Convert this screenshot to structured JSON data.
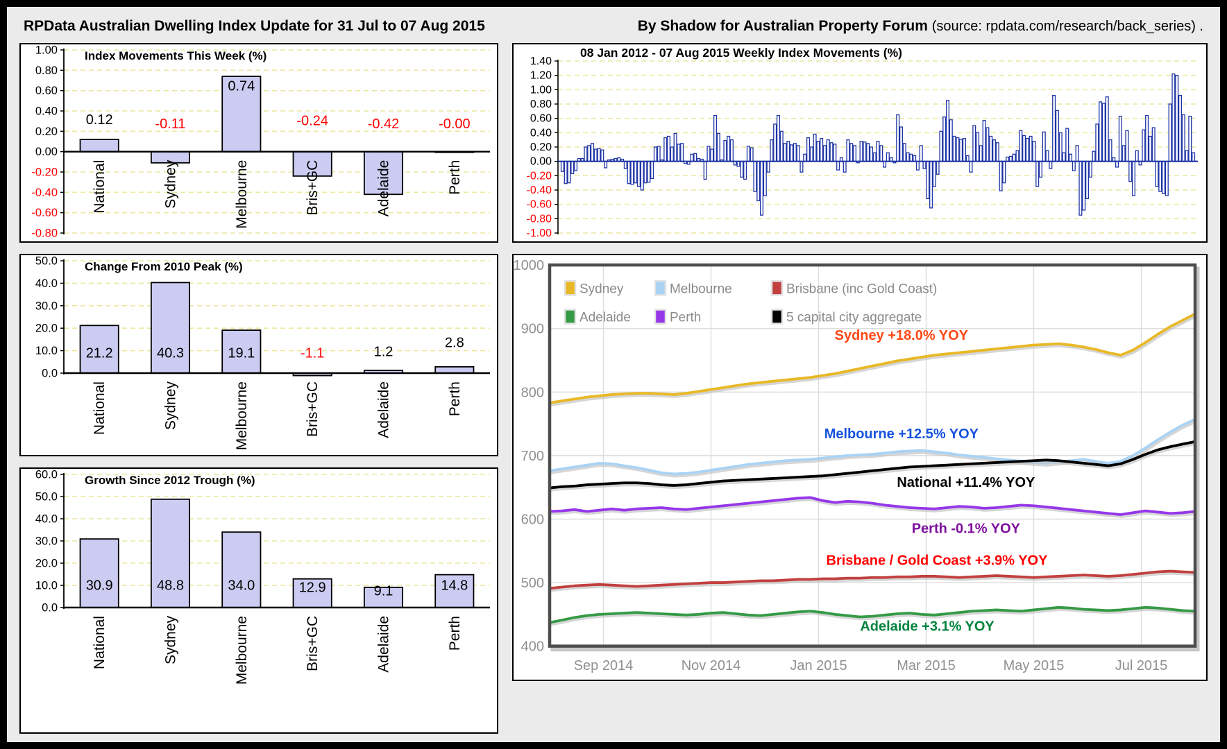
{
  "header": {
    "left_title": "RPData Australian Dwelling Index Update for 31 Jul to 07 Aug 2015",
    "right_title_bold": "By Shadow for Australian Property Forum",
    "right_title_rest": "(source: rpdata.com/research/back_series) ."
  },
  "colors": {
    "bar_fill": "#ccccf2",
    "bar_stroke": "#000000",
    "grid_yellow": "#ece79e",
    "weekly_bar_stroke": "#1f35a5",
    "negative_red": "#ff0000",
    "axis_gray": "#909090",
    "frame_gray": "#4d4d4d",
    "line_grid_gray": "#dcdcdc",
    "legend_text_gray": "#8a8a8a"
  },
  "chart_data": [
    {
      "id": "this_week",
      "type": "bar",
      "title": "Index Movements This Week (%)",
      "categories": [
        "National",
        "Sydney",
        "Melbourne",
        "Bris+GC",
        "Adelaide",
        "Perth"
      ],
      "values": [
        0.12,
        -0.11,
        0.74,
        -0.24,
        -0.42,
        -0.005
      ],
      "value_labels": [
        "0.12",
        "-0.11",
        "0.74",
        "-0.24",
        "-0.42",
        "-0.00"
      ],
      "label_heights": [
        0.27,
        0.23,
        0.6,
        0.26,
        0.23,
        0.23
      ],
      "ylim": [
        -0.8,
        1.0
      ],
      "ytick": 0.2,
      "ydecimals": 2
    },
    {
      "id": "weekly",
      "type": "dense_bar",
      "title": "08 Jan 2012 - 07 Aug 2015 Weekly Index Movements (%)",
      "ylim": [
        -1.0,
        1.4
      ],
      "ytick": 0.2,
      "ydecimals": 2,
      "values": [
        -0.14,
        -0.31,
        -0.3,
        -0.17,
        -0.13,
        0.04,
        0.04,
        0.2,
        0.22,
        0.25,
        0.17,
        0.18,
        0.16,
        -0.09,
        0.02,
        0.03,
        0.04,
        0.05,
        0.03,
        -0.1,
        -0.31,
        -0.32,
        -0.3,
        -0.35,
        -0.4,
        -0.3,
        -0.29,
        -0.24,
        0.2,
        0.21,
        0.02,
        0.33,
        0.35,
        0.2,
        0.39,
        0.24,
        0.25,
        -0.03,
        -0.04,
        0.1,
        0.11,
        0.04,
        0.03,
        -0.25,
        0.21,
        0.17,
        0.64,
        0.39,
        0.02,
        0.29,
        0.35,
        0.3,
        -0.05,
        -0.07,
        -0.22,
        -0.25,
        0.21,
        0.19,
        -0.42,
        -0.55,
        -0.75,
        -0.48,
        -0.15,
        0.3,
        0.52,
        0.64,
        0.42,
        0.25,
        0.28,
        0.23,
        0.25,
        0.22,
        -0.15,
        0.1,
        0.33,
        0.2,
        0.38,
        0.28,
        0.32,
        0.22,
        0.3,
        0.26,
        0.24,
        -0.12,
        0.05,
        -0.15,
        0.3,
        0.25,
        0.22,
        -0.02,
        0.28,
        0.27,
        0.25,
        0.2,
        0.12,
        0.28,
        0.22,
        -0.08,
        0.12,
        0.05,
        -0.02,
        0.65,
        0.48,
        0.25,
        0.12,
        0.1,
        0.08,
        -0.12,
        0.22,
        -0.1,
        -0.52,
        -0.65,
        -0.35,
        -0.18,
        0.42,
        0.62,
        0.85,
        0.58,
        0.35,
        0.33,
        0.31,
        0.32,
        0.08,
        -0.15,
        0.5,
        0.4,
        0.22,
        0.57,
        0.47,
        0.35,
        0.3,
        0.26,
        -0.41,
        -0.3,
        0.06,
        0.07,
        0.1,
        0.15,
        0.43,
        0.36,
        0.32,
        0.35,
        0.28,
        -0.35,
        -0.22,
        0.41,
        0.15,
        -0.1,
        0.92,
        0.71,
        0.4,
        0.12,
        0.46,
        0.1,
        -0.13,
        0.22,
        -0.75,
        -0.68,
        -0.52,
        -0.22,
        0.14,
        0.52,
        0.83,
        0.81,
        0.9,
        0.3,
        0.05,
        -0.08,
        0.63,
        0.22,
        0.43,
        -0.28,
        -0.48,
        0.15,
        -0.05,
        0.44,
        0.64,
        0.35,
        0.47,
        -0.35,
        -0.42,
        -0.45,
        -0.48,
        0.8,
        1.22,
        1.2,
        0.92,
        0.65,
        0.15,
        0.63,
        0.12
      ]
    },
    {
      "id": "peak",
      "type": "bar",
      "title": "Change From 2010 Peak (%)",
      "categories": [
        "National",
        "Sydney",
        "Melbourne",
        "Bris+GC",
        "Adelaide",
        "Perth"
      ],
      "values": [
        21.2,
        40.3,
        19.1,
        -1.1,
        1.2,
        2.8
      ],
      "value_labels": [
        "21.2",
        "40.3",
        "19.1",
        "-1.1",
        "1.2",
        "2.8"
      ],
      "label_heights": [
        7,
        7,
        7,
        7,
        7.5,
        11.5
      ],
      "ylim": [
        0,
        50
      ],
      "ytick": 10,
      "ydecimals": 1
    },
    {
      "id": "trough",
      "type": "bar",
      "title": "Growth Since 2012 Trough (%)",
      "categories": [
        "National",
        "Sydney",
        "Melbourne",
        "Bris+GC",
        "Adelaide",
        "Perth"
      ],
      "values": [
        30.9,
        48.8,
        34.0,
        12.9,
        9.1,
        14.8
      ],
      "value_labels": [
        "30.9",
        "48.8",
        "34.0",
        "12.9",
        "9.1",
        "14.8"
      ],
      "label_heights": [
        8,
        8,
        8,
        7,
        5.5,
        8
      ],
      "ylim": [
        0,
        60
      ],
      "ytick": 10,
      "ydecimals": 1,
      "extra_bottom": 62
    },
    {
      "id": "index_lines",
      "type": "line",
      "ylim": [
        400,
        1000
      ],
      "ytick": 100,
      "x_tick_labels": [
        "Sep 2014",
        "Nov 2014",
        "Jan 2015",
        "Mar 2015",
        "May 2015",
        "Jul 2015"
      ],
      "legend": [
        {
          "label": "Sydney",
          "color": "#e8b826"
        },
        {
          "label": "Melbourne",
          "color": "#a9d3f5"
        },
        {
          "label": "Brisbane (inc Gold Coast)",
          "color": "#c2403f"
        },
        {
          "label": "Adelaide",
          "color": "#359a46"
        },
        {
          "label": "Perth",
          "color": "#9637ea"
        },
        {
          "label": "5 capital city aggregate",
          "color": "#000000"
        }
      ],
      "series": [
        {
          "name": "Brisbane (inc Gold Coast)",
          "color": "#c2403f",
          "annotation": {
            "text": "Brisbane / Gold Coast +3.9% YOY",
            "color": "#ff0000",
            "fx": 0.6,
            "value": 528
          },
          "values": [
            491,
            493,
            495,
            496,
            497,
            496,
            495,
            494,
            495,
            496,
            497,
            498,
            499,
            500,
            500,
            501,
            502,
            503,
            503,
            504,
            505,
            505,
            506,
            506,
            507,
            507,
            508,
            508,
            509,
            509,
            510,
            510,
            509,
            508,
            509,
            510,
            511,
            510,
            509,
            508,
            509,
            510,
            511,
            512,
            511,
            510,
            511,
            513,
            515,
            517,
            518,
            517,
            516
          ]
        },
        {
          "name": "Adelaide",
          "color": "#359a46",
          "annotation": {
            "text": "Adelaide +3.1% YOY",
            "color": "#00833e",
            "fx": 0.585,
            "value": 424
          },
          "values": [
            437,
            441,
            445,
            448,
            450,
            451,
            452,
            453,
            452,
            451,
            450,
            449,
            450,
            452,
            453,
            451,
            449,
            448,
            450,
            452,
            454,
            455,
            453,
            450,
            448,
            446,
            447,
            449,
            451,
            452,
            450,
            449,
            451,
            453,
            455,
            456,
            457,
            456,
            455,
            457,
            459,
            461,
            460,
            458,
            457,
            456,
            457,
            459,
            461,
            460,
            458,
            456,
            455
          ]
        },
        {
          "name": "Perth",
          "color": "#9637ea",
          "annotation": {
            "text": "Perth -0.1% YOY",
            "color": "#7d0f9e",
            "fx": 0.645,
            "value": 578
          },
          "values": [
            612,
            613,
            615,
            612,
            614,
            616,
            614,
            616,
            617,
            618,
            616,
            615,
            617,
            619,
            621,
            623,
            625,
            627,
            629,
            631,
            633,
            634,
            629,
            626,
            628,
            627,
            625,
            622,
            620,
            618,
            617,
            616,
            618,
            620,
            619,
            617,
            618,
            620,
            622,
            621,
            619,
            617,
            615,
            613,
            611,
            609,
            607,
            610,
            613,
            611,
            609,
            610,
            612
          ]
        },
        {
          "name": "Melbourne",
          "color": "#a9d3f5",
          "annotation": {
            "text": "Melbourne +12.5% YOY",
            "color": "#1652e0",
            "fx": 0.545,
            "value": 727
          },
          "values": [
            676,
            679,
            682,
            685,
            688,
            687,
            684,
            681,
            677,
            673,
            671,
            672,
            674,
            677,
            680,
            683,
            686,
            688,
            690,
            692,
            693,
            694,
            696,
            698,
            700,
            701,
            702,
            704,
            706,
            707,
            708,
            706,
            704,
            701,
            699,
            697,
            695,
            693,
            691,
            689,
            688,
            690,
            692,
            694,
            691,
            688,
            691,
            700,
            712,
            725,
            737,
            748,
            757
          ]
        },
        {
          "name": "5 capital city aggregate",
          "color": "#000000",
          "annotation": {
            "text": "National +11.4% YOY",
            "color": "#000000",
            "fx": 0.645,
            "value": 651
          },
          "values": [
            649,
            651,
            652,
            654,
            655,
            656,
            657,
            657,
            656,
            654,
            653,
            654,
            656,
            658,
            660,
            661,
            662,
            663,
            664,
            665,
            666,
            667,
            668,
            670,
            672,
            674,
            676,
            678,
            680,
            682,
            683,
            684,
            685,
            686,
            687,
            688,
            689,
            690,
            691,
            692,
            693,
            692,
            690,
            688,
            686,
            684,
            687,
            694,
            702,
            709,
            714,
            718,
            722
          ]
        },
        {
          "name": "Sydney",
          "color": "#e8b826",
          "annotation": {
            "text": "Sydney +18.0% YOY",
            "color": "#ff4713",
            "fx": 0.545,
            "value": 882
          },
          "values": [
            783,
            786,
            789,
            792,
            794,
            796,
            797,
            798,
            798,
            797,
            796,
            798,
            801,
            804,
            807,
            810,
            813,
            815,
            817,
            819,
            821,
            823,
            826,
            829,
            833,
            837,
            841,
            845,
            849,
            852,
            855,
            858,
            860,
            862,
            864,
            866,
            868,
            870,
            872,
            874,
            875,
            876,
            874,
            871,
            867,
            862,
            858,
            866,
            878,
            891,
            903,
            913,
            923
          ]
        }
      ]
    }
  ]
}
